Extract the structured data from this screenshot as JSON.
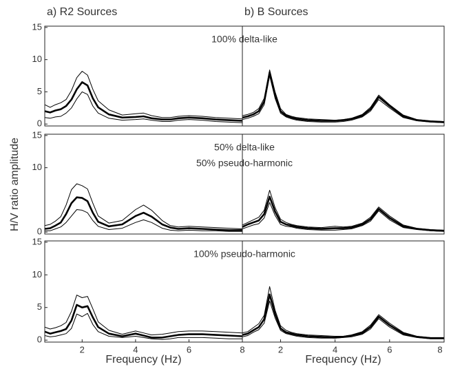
{
  "chart_data": [
    {
      "type": "line",
      "title": "a) R2 Sources",
      "annotations": [
        "100% delta-like"
      ],
      "x": [
        0.6,
        0.8,
        1.0,
        1.2,
        1.4,
        1.6,
        1.8,
        2.0,
        2.2,
        2.4,
        2.6,
        3.0,
        3.5,
        4.0,
        4.3,
        4.6,
        5.0,
        5.3,
        5.6,
        6.0,
        6.5,
        7.0,
        7.5,
        8.0
      ],
      "xlim": [
        0.6,
        8
      ],
      "ylim": [
        -0.3,
        15.2
      ],
      "yticks": [
        0,
        5,
        10,
        15
      ],
      "series": [
        {
          "color": "#000000",
          "values": [
            2.0,
            1.8,
            2.1,
            2.3,
            2.8,
            3.8,
            5.4,
            6.5,
            6.0,
            4.0,
            2.6,
            1.5,
            1.0,
            1.1,
            1.2,
            0.9,
            0.7,
            0.7,
            0.9,
            1.0,
            0.9,
            0.7,
            0.6,
            0.5
          ]
        },
        {
          "color": "#000000",
          "values": [
            3.0,
            2.6,
            3.0,
            3.3,
            3.8,
            5.2,
            7.2,
            8.2,
            7.6,
            5.4,
            3.6,
            2.2,
            1.4,
            1.6,
            1.7,
            1.3,
            1.0,
            1.0,
            1.2,
            1.3,
            1.2,
            1.0,
            0.9,
            0.8
          ]
        },
        {
          "color": "#000000",
          "values": [
            1.0,
            0.9,
            1.1,
            1.2,
            1.7,
            2.5,
            3.9,
            5.0,
            4.6,
            2.8,
            1.7,
            0.9,
            0.6,
            0.7,
            0.8,
            0.6,
            0.4,
            0.4,
            0.6,
            0.7,
            0.6,
            0.4,
            0.3,
            0.2
          ]
        }
      ]
    },
    {
      "type": "line",
      "title": "b) B Sources",
      "x": [
        0.6,
        0.8,
        1.0,
        1.2,
        1.4,
        1.6,
        1.8,
        2.0,
        2.2,
        2.4,
        2.6,
        3.0,
        3.5,
        4.0,
        4.3,
        4.6,
        5.0,
        5.3,
        5.6,
        6.0,
        6.5,
        7.0,
        7.5,
        8.0
      ],
      "xlim": [
        0.6,
        8
      ],
      "ylim": [
        -0.3,
        15.2
      ],
      "series": [
        {
          "color": "#000000",
          "values": [
            1.0,
            1.2,
            1.5,
            2.0,
            3.5,
            8.0,
            4.5,
            2.0,
            1.3,
            1.0,
            0.8,
            0.6,
            0.5,
            0.5,
            0.6,
            0.8,
            1.3,
            2.3,
            4.2,
            2.8,
            1.2,
            0.6,
            0.4,
            0.3
          ]
        },
        {
          "color": "#000000",
          "values": [
            1.3,
            1.5,
            1.8,
            2.4,
            4.0,
            8.4,
            5.0,
            2.4,
            1.5,
            1.2,
            1.0,
            0.8,
            0.7,
            0.6,
            0.7,
            0.9,
            1.5,
            2.6,
            4.5,
            3.0,
            1.4,
            0.7,
            0.5,
            0.4
          ]
        },
        {
          "color": "#000000",
          "values": [
            0.7,
            0.9,
            1.2,
            1.6,
            3.0,
            7.5,
            4.0,
            1.7,
            1.1,
            0.8,
            0.6,
            0.4,
            0.3,
            0.3,
            0.4,
            0.6,
            1.1,
            2.0,
            3.8,
            2.5,
            1.0,
            0.5,
            0.3,
            0.2
          ]
        }
      ]
    },
    {
      "type": "line",
      "ylabel": "H/V ratio amplitude",
      "annotations": [
        "50% delta-like",
        "50% pseudo-harmonic"
      ],
      "x": [
        0.6,
        0.8,
        1.0,
        1.2,
        1.4,
        1.6,
        1.8,
        2.0,
        2.2,
        2.4,
        2.6,
        3.0,
        3.5,
        4.0,
        4.3,
        4.6,
        5.0,
        5.3,
        5.6,
        6.0,
        6.5,
        7.0,
        7.5,
        8.0
      ],
      "xlim": [
        0.6,
        8
      ],
      "ylim": [
        -0.3,
        15.2
      ],
      "yticks": [
        0,
        10,
        15
      ],
      "series": [
        {
          "color": "#000000",
          "values": [
            0.5,
            0.6,
            1.0,
            1.5,
            2.8,
            4.5,
            5.4,
            5.3,
            4.8,
            3.0,
            1.6,
            0.9,
            1.2,
            2.5,
            3.0,
            2.4,
            1.2,
            0.7,
            0.5,
            0.6,
            0.5,
            0.4,
            0.3,
            0.3
          ]
        },
        {
          "color": "#000000",
          "values": [
            1.0,
            1.2,
            1.7,
            2.4,
            4.2,
            6.6,
            7.5,
            7.2,
            6.7,
            4.5,
            2.5,
            1.4,
            1.8,
            3.5,
            4.2,
            3.4,
            1.8,
            1.0,
            0.8,
            0.9,
            0.8,
            0.7,
            0.6,
            0.5
          ]
        },
        {
          "color": "#000000",
          "values": [
            0.2,
            0.2,
            0.5,
            0.8,
            1.5,
            2.5,
            3.5,
            3.4,
            3.0,
            1.8,
            0.9,
            0.4,
            0.6,
            1.5,
            1.9,
            1.5,
            0.6,
            0.3,
            0.2,
            0.3,
            0.2,
            0.2,
            0.1,
            0.1
          ]
        }
      ]
    },
    {
      "type": "line",
      "x": [
        0.6,
        0.8,
        1.0,
        1.2,
        1.4,
        1.6,
        1.8,
        2.0,
        2.2,
        2.4,
        2.6,
        3.0,
        3.5,
        4.0,
        4.3,
        4.6,
        5.0,
        5.3,
        5.6,
        6.0,
        6.5,
        7.0,
        7.5,
        8.0
      ],
      "xlim": [
        0.6,
        8
      ],
      "ylim": [
        -0.3,
        15.2
      ],
      "series": [
        {
          "color": "#000000",
          "values": [
            0.8,
            1.2,
            1.5,
            1.8,
            2.8,
            5.5,
            3.2,
            1.6,
            1.2,
            1.0,
            0.8,
            0.6,
            0.5,
            0.6,
            0.6,
            0.7,
            1.2,
            2.0,
            3.6,
            2.2,
            0.9,
            0.5,
            0.3,
            0.2
          ]
        },
        {
          "color": "#000000",
          "values": [
            1.1,
            1.5,
            1.9,
            2.3,
            3.4,
            6.5,
            3.8,
            2.0,
            1.5,
            1.2,
            1.0,
            0.8,
            0.7,
            0.9,
            0.8,
            0.9,
            1.4,
            2.3,
            3.9,
            2.5,
            1.1,
            0.6,
            0.4,
            0.3
          ]
        },
        {
          "color": "#000000",
          "values": [
            0.5,
            0.8,
            1.1,
            1.3,
            2.2,
            4.6,
            2.6,
            1.2,
            0.9,
            0.8,
            0.6,
            0.4,
            0.3,
            0.3,
            0.4,
            0.5,
            1.0,
            1.7,
            3.3,
            1.9,
            0.7,
            0.4,
            0.2,
            0.1
          ]
        }
      ]
    },
    {
      "type": "line",
      "xlabel": "Frequency (Hz)",
      "annotations": [
        "100% pseudo-harmonic"
      ],
      "x": [
        0.6,
        0.8,
        1.0,
        1.2,
        1.4,
        1.6,
        1.8,
        2.0,
        2.2,
        2.4,
        2.6,
        3.0,
        3.5,
        4.0,
        4.3,
        4.6,
        5.0,
        5.3,
        5.6,
        6.0,
        6.5,
        7.0,
        7.5,
        8.0
      ],
      "xlim": [
        0.6,
        8
      ],
      "xticks": [
        2,
        4,
        6,
        8
      ],
      "ylim": [
        -0.3,
        15.2
      ],
      "yticks": [
        0,
        5,
        10,
        15
      ],
      "series": [
        {
          "color": "#000000",
          "values": [
            1.3,
            1.0,
            1.2,
            1.4,
            1.7,
            3.0,
            5.4,
            5.0,
            5.2,
            3.5,
            2.0,
            1.0,
            0.6,
            1.0,
            0.7,
            0.4,
            0.4,
            0.6,
            0.8,
            0.9,
            0.9,
            0.8,
            0.7,
            0.6
          ]
        },
        {
          "color": "#000000",
          "values": [
            2.0,
            1.7,
            1.9,
            2.2,
            2.7,
            4.4,
            6.9,
            6.5,
            6.7,
            4.8,
            2.8,
            1.5,
            0.9,
            1.4,
            1.1,
            0.8,
            0.9,
            1.1,
            1.3,
            1.4,
            1.4,
            1.3,
            1.2,
            1.1
          ]
        },
        {
          "color": "#000000",
          "values": [
            0.7,
            0.5,
            0.6,
            0.8,
            1.0,
            1.8,
            4.0,
            3.6,
            4.1,
            2.4,
            1.3,
            0.6,
            0.4,
            0.6,
            0.4,
            0.2,
            0.1,
            0.2,
            0.4,
            0.4,
            0.4,
            0.3,
            0.2,
            0.2
          ]
        }
      ]
    },
    {
      "type": "line",
      "xlabel": "Frequency (Hz)",
      "x": [
        0.6,
        0.8,
        1.0,
        1.2,
        1.4,
        1.6,
        1.8,
        2.0,
        2.2,
        2.4,
        2.6,
        3.0,
        3.5,
        4.0,
        4.3,
        4.6,
        5.0,
        5.3,
        5.6,
        6.0,
        6.5,
        7.0,
        7.5,
        8.0
      ],
      "xlim": [
        0.6,
        8
      ],
      "xticks": [
        2,
        4,
        6,
        8
      ],
      "ylim": [
        -0.3,
        15.2
      ],
      "series": [
        {
          "color": "#000000",
          "values": [
            0.8,
            1.0,
            1.5,
            2.0,
            3.2,
            7.0,
            4.0,
            1.8,
            1.2,
            1.0,
            0.8,
            0.6,
            0.5,
            0.4,
            0.5,
            0.7,
            1.1,
            2.0,
            3.6,
            2.3,
            1.0,
            0.5,
            0.3,
            0.3
          ]
        },
        {
          "color": "#000000",
          "values": [
            1.1,
            1.3,
            1.9,
            2.5,
            3.8,
            8.2,
            4.6,
            2.2,
            1.5,
            1.2,
            1.0,
            0.8,
            0.7,
            0.6,
            0.6,
            0.8,
            1.3,
            2.3,
            3.9,
            2.6,
            1.2,
            0.6,
            0.4,
            0.4
          ]
        },
        {
          "color": "#000000",
          "values": [
            0.5,
            0.7,
            1.2,
            1.6,
            2.6,
            6.0,
            3.4,
            1.5,
            1.0,
            0.8,
            0.6,
            0.4,
            0.3,
            0.3,
            0.4,
            0.5,
            0.9,
            1.7,
            3.3,
            2.0,
            0.8,
            0.4,
            0.2,
            0.2
          ]
        }
      ]
    }
  ]
}
